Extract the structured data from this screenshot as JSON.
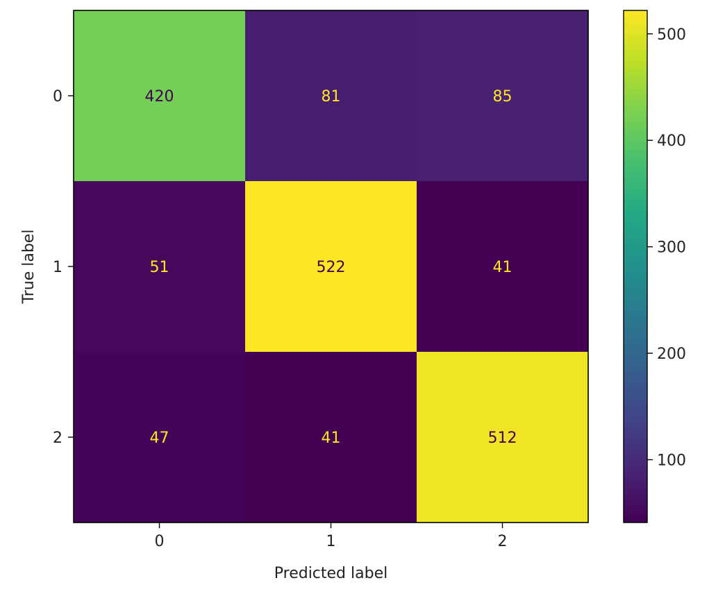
{
  "chart_data": {
    "type": "heatmap",
    "title": "",
    "xlabel": "Predicted label",
    "ylabel": "True label",
    "x_categories": [
      "0",
      "1",
      "2"
    ],
    "y_categories": [
      "0",
      "1",
      "2"
    ],
    "values": [
      [
        420,
        81,
        85
      ],
      [
        51,
        522,
        41
      ],
      [
        47,
        41,
        512
      ]
    ],
    "colormap": "viridis",
    "colorbar": {
      "range": [
        41,
        522
      ],
      "ticks": [
        100,
        200,
        300,
        400,
        500
      ]
    },
    "grid": false
  }
}
